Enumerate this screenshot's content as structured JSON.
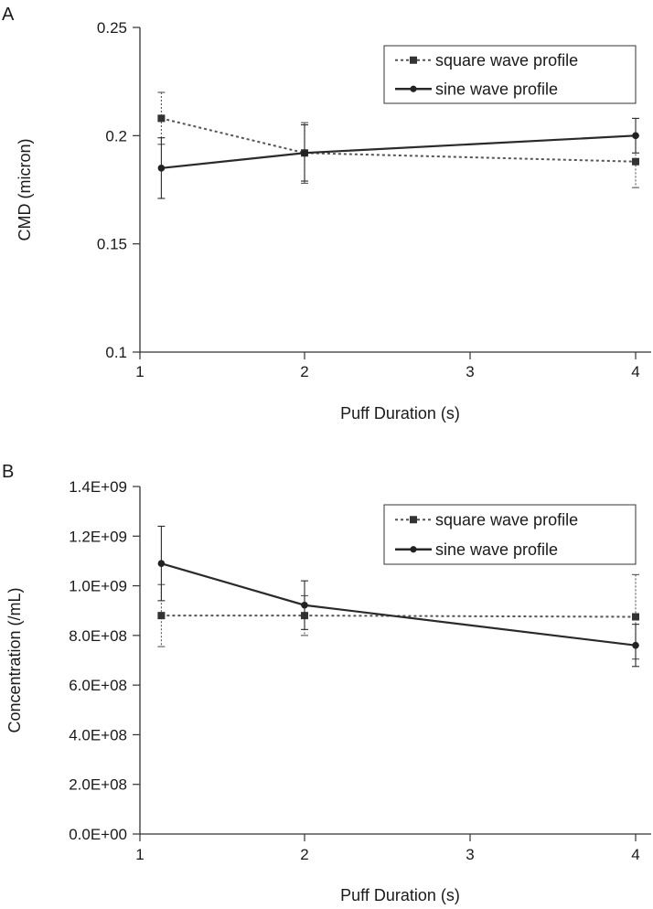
{
  "chart_data": [
    {
      "panel": "A",
      "type": "line",
      "title": "",
      "xlabel": "Puff Duration (s)",
      "ylabel": "CMD (micron)",
      "xlim": [
        1,
        4
      ],
      "ylim": [
        0.1,
        0.25
      ],
      "x_ticks": [
        "1",
        "2",
        "3",
        "4"
      ],
      "y_ticks": [
        "0.1",
        "0.15",
        "0.2",
        "0.25"
      ],
      "grid": false,
      "legend_position": "top-right",
      "series": [
        {
          "name": "square wave profile",
          "style": "dotted",
          "x": [
            1.13,
            2,
            4
          ],
          "y": [
            0.208,
            0.192,
            0.188
          ],
          "error": [
            0.012,
            0.014,
            0.012
          ]
        },
        {
          "name": "sine wave profile",
          "style": "solid",
          "x": [
            1.13,
            2,
            4
          ],
          "y": [
            0.185,
            0.192,
            0.2
          ],
          "error": [
            0.014,
            0.013,
            0.008
          ]
        }
      ]
    },
    {
      "panel": "B",
      "type": "line",
      "title": "",
      "xlabel": "Puff Duration (s)",
      "ylabel": "Concentration (/mL)",
      "xlim": [
        1,
        4
      ],
      "ylim": [
        0,
        1400000000
      ],
      "x_ticks": [
        "1",
        "2",
        "3",
        "4"
      ],
      "y_ticks": [
        "0.0E+00",
        "2.0E+08",
        "4.0E+08",
        "6.0E+08",
        "8.0E+08",
        "1.0E+09",
        "1.2E+09",
        "1.4E+09"
      ],
      "grid": false,
      "legend_position": "top-right",
      "series": [
        {
          "name": "square wave profile",
          "style": "dotted",
          "x": [
            1.13,
            2,
            4
          ],
          "y": [
            880000000,
            880000000,
            875000000
          ],
          "error": [
            125000000,
            80000000,
            170000000
          ]
        },
        {
          "name": "sine wave profile",
          "style": "solid",
          "x": [
            1.13,
            2,
            4
          ],
          "y": [
            1090000000,
            922000000,
            760000000
          ],
          "error": [
            150000000,
            98000000,
            85000000
          ]
        }
      ]
    }
  ]
}
